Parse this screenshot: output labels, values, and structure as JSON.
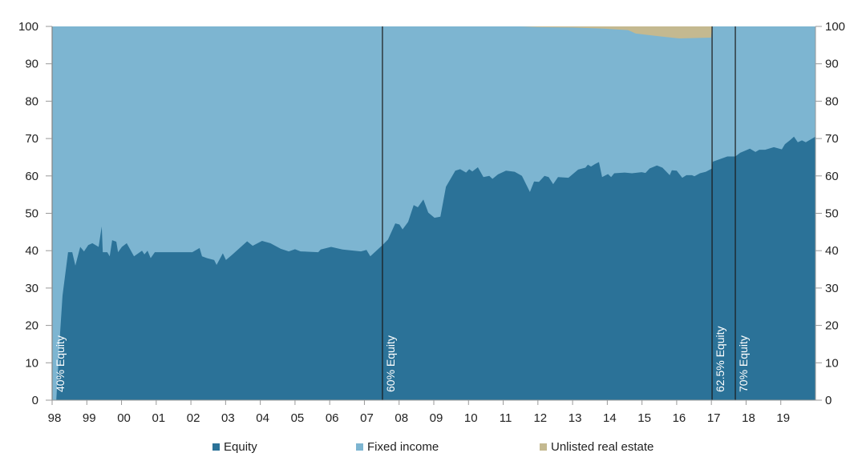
{
  "chart_data": {
    "type": "area",
    "stacked": true,
    "title": "",
    "xlabel": "",
    "ylabel": "",
    "xlim": [
      1998,
      2020
    ],
    "ylim": [
      0,
      100
    ],
    "yticks": [
      0,
      10,
      20,
      30,
      40,
      50,
      60,
      70,
      80,
      90,
      100
    ],
    "xtick_labels": [
      "98",
      "99",
      "00",
      "01",
      "02",
      "03",
      "04",
      "05",
      "06",
      "07",
      "08",
      "09",
      "10",
      "11",
      "12",
      "13",
      "14",
      "15",
      "16",
      "17",
      "18",
      "19"
    ],
    "grid": false,
    "legend_position": "bottom",
    "colors": {
      "equity": "#2b7298",
      "fixed_income": "#7db5d1",
      "real_estate": "#c4b990",
      "line": "#1a1a1a"
    },
    "series": [
      {
        "name": "Equity",
        "x": [
          1998.0,
          1998.12,
          1998.23,
          1998.3,
          1998.46,
          1998.58,
          1998.67,
          1998.81,
          1998.92,
          1999.04,
          1999.16,
          1999.34,
          1999.43,
          1999.46,
          1999.59,
          1999.66,
          1999.73,
          1999.85,
          1999.9,
          2000.01,
          2000.15,
          2000.36,
          2000.59,
          2000.66,
          2000.75,
          2000.84,
          2000.96,
          2002.04,
          2002.25,
          2002.32,
          2002.46,
          2002.67,
          2002.74,
          2002.92,
          2003.01,
          2003.2,
          2003.62,
          2003.78,
          2004.05,
          2004.29,
          2004.59,
          2004.82,
          2005.0,
          2005.16,
          2005.67,
          2005.74,
          2006.04,
          2006.37,
          2006.9,
          2007.06,
          2007.17,
          2007.52,
          2007.68,
          2007.89,
          2008.01,
          2008.1,
          2008.26,
          2008.42,
          2008.54,
          2008.7,
          2008.84,
          2009.02,
          2009.19,
          2009.35,
          2009.62,
          2009.76,
          2009.93,
          2010.02,
          2010.11,
          2010.27,
          2010.43,
          2010.6,
          2010.69,
          2010.85,
          2011.08,
          2011.33,
          2011.54,
          2011.77,
          2011.89,
          2012.03,
          2012.19,
          2012.31,
          2012.44,
          2012.58,
          2012.88,
          2013.16,
          2013.37,
          2013.44,
          2013.53,
          2013.65,
          2013.76,
          2013.85,
          2014.02,
          2014.11,
          2014.2,
          2014.5,
          2014.71,
          2014.99,
          2015.1,
          2015.22,
          2015.43,
          2015.59,
          2015.8,
          2015.86,
          2016.0,
          2016.16,
          2016.28,
          2016.44,
          2016.51,
          2016.67,
          2016.84,
          2017.02,
          2017.04,
          2017.46,
          2017.69,
          2017.83,
          2018.11,
          2018.27,
          2018.38,
          2018.55,
          2018.8,
          2019.03,
          2019.12,
          2019.26,
          2019.38,
          2019.49,
          2019.61,
          2019.72,
          2020.0
        ],
        "values": [
          0,
          0,
          18,
          28,
          39.6,
          39.6,
          36,
          41,
          39.8,
          41.5,
          42,
          41,
          46.5,
          39.6,
          39.6,
          38.5,
          42.8,
          42.4,
          39.6,
          41,
          42,
          38.5,
          40,
          39,
          40,
          38,
          39.6,
          39.6,
          40.7,
          38.5,
          38,
          37.5,
          36.2,
          39.3,
          37.5,
          39,
          42.5,
          41.3,
          42.6,
          42,
          40.5,
          39.8,
          40.4,
          39.8,
          39.6,
          40.3,
          41,
          40.3,
          39.8,
          40.2,
          38.5,
          41.5,
          43,
          47.3,
          47,
          45.7,
          47.7,
          52.2,
          51.6,
          53.7,
          50.2,
          48.8,
          49.1,
          57.1,
          61.4,
          61.8,
          60.9,
          61.8,
          61.2,
          62.3,
          59.7,
          60,
          59.2,
          60.4,
          61.4,
          61.1,
          60,
          55.7,
          58.5,
          58.4,
          60,
          59.7,
          57.8,
          59.7,
          59.5,
          61.7,
          62.2,
          63,
          62.5,
          63.2,
          63.7,
          59.7,
          60.5,
          59.7,
          60.7,
          60.9,
          60.7,
          61,
          60.8,
          62,
          62.8,
          62.2,
          60.2,
          61.5,
          61.4,
          59.5,
          60.2,
          60.2,
          59.9,
          60.7,
          61.1,
          62,
          63.8,
          65.2,
          65.2,
          66.2,
          67.3,
          66.4,
          67,
          67,
          67.7,
          67.1,
          68.5,
          69.5,
          70.5,
          69,
          69.5,
          69,
          70.5
        ]
      },
      {
        "name": "Fixed income",
        "note_remainder": true
      },
      {
        "name": "Unlisted real estate",
        "x": [
          2011.52,
          2012.0,
          2013.0,
          2013.9,
          2014.6,
          2014.82,
          2015.45,
          2016.07,
          2016.99,
          2017.02
        ],
        "values": [
          0,
          0.2,
          0.3,
          0.6,
          1.0,
          1.9,
          2.6,
          3.2,
          3.0,
          0
        ]
      }
    ],
    "annotations": [
      {
        "x": 1998.0,
        "label": "40% Equity"
      },
      {
        "x": 2007.52,
        "label": "60% Equity"
      },
      {
        "x": 2017.02,
        "label": "62.5% Equity"
      },
      {
        "x": 2017.69,
        "label": "70% Equity"
      }
    ],
    "legend": [
      "Equity",
      "Fixed income",
      "Unlisted real estate"
    ]
  }
}
